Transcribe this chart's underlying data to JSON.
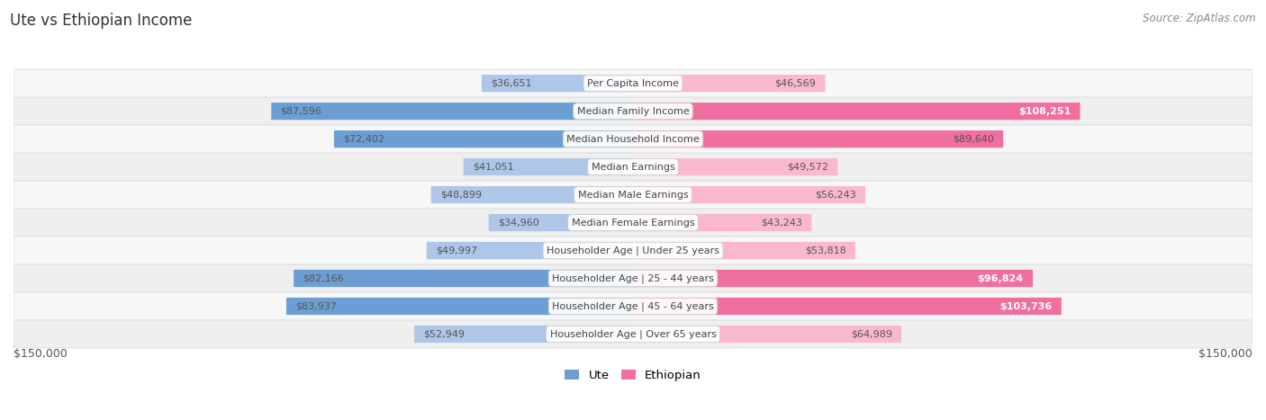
{
  "title": "Ute vs Ethiopian Income",
  "source": "Source: ZipAtlas.com",
  "categories": [
    "Per Capita Income",
    "Median Family Income",
    "Median Household Income",
    "Median Earnings",
    "Median Male Earnings",
    "Median Female Earnings",
    "Householder Age | Under 25 years",
    "Householder Age | 25 - 44 years",
    "Householder Age | 45 - 64 years",
    "Householder Age | Over 65 years"
  ],
  "ute_values": [
    36651,
    87596,
    72402,
    41051,
    48899,
    34960,
    49997,
    82166,
    83937,
    52949
  ],
  "ethiopian_values": [
    46569,
    108251,
    89640,
    49572,
    56243,
    43243,
    53818,
    96824,
    103736,
    64989
  ],
  "ute_labels": [
    "$36,651",
    "$87,596",
    "$72,402",
    "$41,051",
    "$48,899",
    "$34,960",
    "$49,997",
    "$82,166",
    "$83,937",
    "$52,949"
  ],
  "ethiopian_labels": [
    "$46,569",
    "$108,251",
    "$89,640",
    "$49,572",
    "$56,243",
    "$43,243",
    "$53,818",
    "$96,824",
    "$103,736",
    "$64,989"
  ],
  "ethiopian_highlight": [
    false,
    true,
    false,
    false,
    false,
    false,
    false,
    true,
    true,
    false
  ],
  "ute_highlight": [
    false,
    false,
    false,
    false,
    false,
    false,
    false,
    false,
    false,
    false
  ],
  "max_value": 150000,
  "ute_color_light": "#aec6e8",
  "ute_color_dark": "#6b9fd4",
  "ethiopian_color_light": "#f9b8cf",
  "ethiopian_color_dark": "#f06fa0",
  "row_colors": [
    "#f7f7f7",
    "#efefef"
  ],
  "row_border": "#dddddd",
  "bg_color": "#ffffff",
  "xlabel_left": "$150,000",
  "xlabel_right": "$150,000",
  "legend_ute": "Ute",
  "legend_ethiopian": "Ethiopian",
  "label_color_normal": "#555555",
  "label_color_highlight": "#ffffff",
  "cat_label_color": "#444444",
  "title_color": "#333333",
  "source_color": "#888888"
}
